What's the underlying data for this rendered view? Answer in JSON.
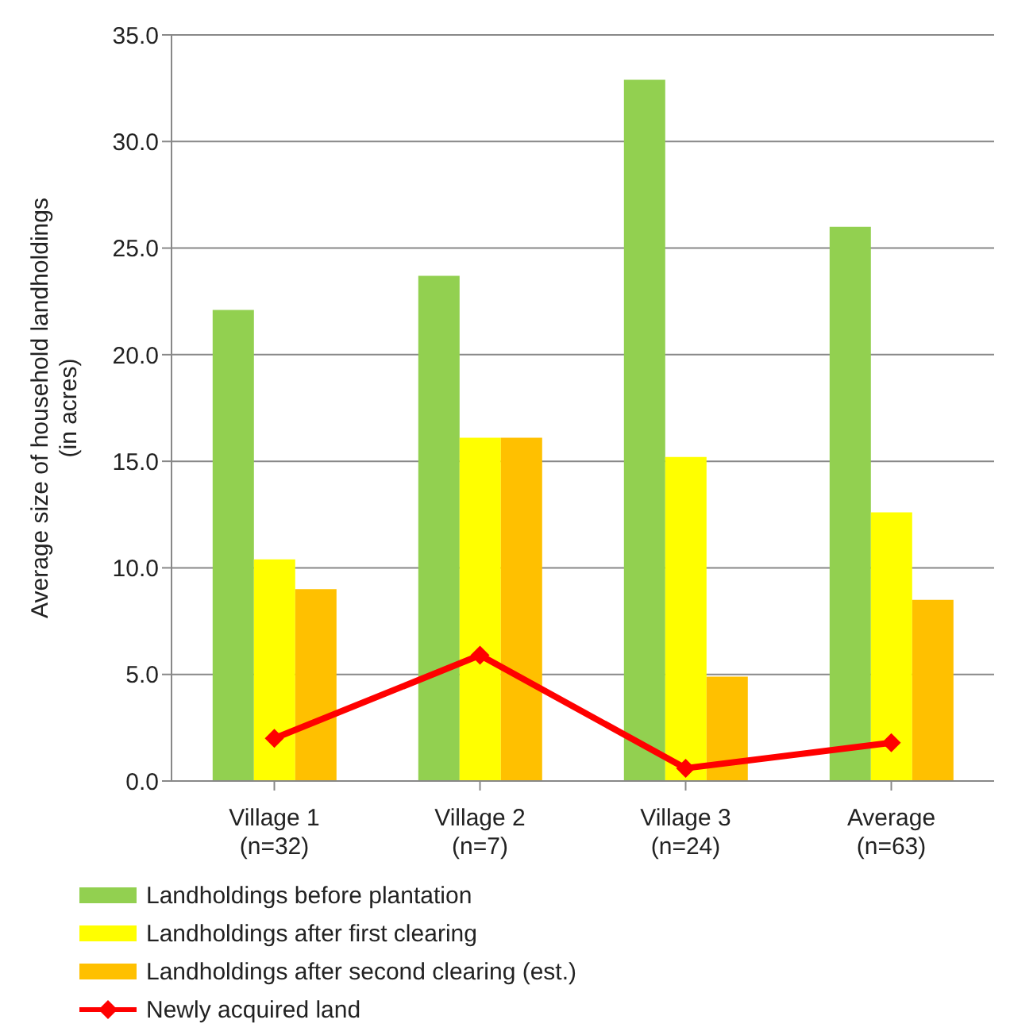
{
  "chart_data": {
    "type": "bar",
    "ylabel": "Average  size of household  landholdings\n(in acres)",
    "categories": [
      "Village 1\n(n=32)",
      "Village 2\n(n=7)",
      "Village 3\n(n=24)",
      "Average\n(n=63)"
    ],
    "series": [
      {
        "name": "Landholdings before plantation",
        "color": "#92d050",
        "values": [
          22.1,
          23.7,
          32.9,
          26.0
        ]
      },
      {
        "name": "Landholdings after first clearing",
        "color": "#ffff00",
        "values": [
          10.4,
          16.1,
          15.2,
          12.6
        ]
      },
      {
        "name": "Landholdings after second clearing (est.)",
        "color": "#ffc000",
        "values": [
          9.0,
          16.1,
          4.9,
          8.5
        ]
      },
      {
        "name": "Newly acquired land",
        "type": "line",
        "color": "#ff0000",
        "marker": "diamond",
        "values": [
          2.0,
          5.9,
          0.6,
          1.8
        ]
      }
    ],
    "ylim": [
      0,
      35
    ],
    "yticks": [
      {
        "value": 0,
        "label": "0.0"
      },
      {
        "value": 5,
        "label": "5.0"
      },
      {
        "value": 10,
        "label": "10.0"
      },
      {
        "value": 15,
        "label": "15.0"
      },
      {
        "value": 20,
        "label": "20.0"
      },
      {
        "value": 25,
        "label": "25.0"
      },
      {
        "value": 30,
        "label": "30.0"
      },
      {
        "value": 35,
        "label": "35.0"
      }
    ],
    "grid": "y",
    "legend": "bottom left"
  }
}
